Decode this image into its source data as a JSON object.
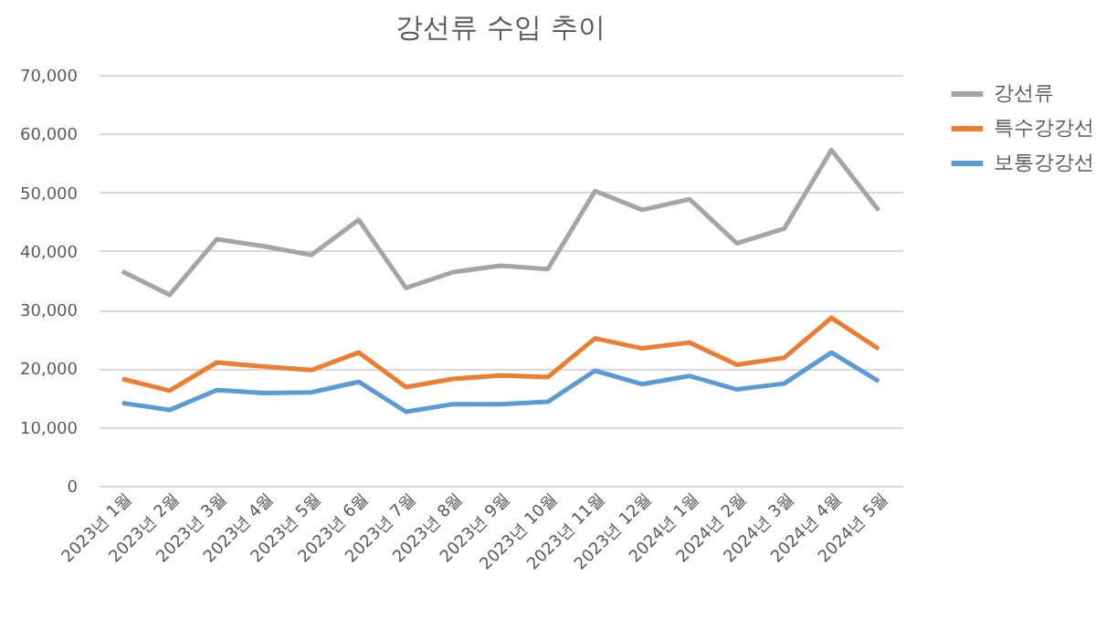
{
  "chart_data": {
    "type": "line",
    "title": "강선류 수입 추이",
    "categories": [
      "2023년 1월",
      "2023년 2월",
      "2023년 3월",
      "2023년 4월",
      "2023년 5월",
      "2023년 6월",
      "2023년 7월",
      "2023년 8월",
      "2023년 9월",
      "2023년 10월",
      "2023년 11월",
      "2023년 12월",
      "2024년 1월",
      "2024년 2월",
      "2024년 3월",
      "2024년 4월",
      "2024년 5월"
    ],
    "series": [
      {
        "name": "강선류",
        "color": "#a5a5a5",
        "values": [
          36500,
          32500,
          42000,
          40800,
          39300,
          45300,
          33700,
          36400,
          37500,
          36900,
          50200,
          47000,
          48800,
          41300,
          43800,
          57200,
          46900
        ]
      },
      {
        "name": "특수강강선",
        "color": "#ed7d31",
        "values": [
          18200,
          16200,
          21000,
          20300,
          19700,
          22700,
          16800,
          18200,
          18800,
          18500,
          25100,
          23400,
          24400,
          20600,
          21800,
          28600,
          23300
        ]
      },
      {
        "name": "보통강강선",
        "color": "#5b9bd5",
        "values": [
          14100,
          12900,
          16300,
          15800,
          15900,
          17700,
          12600,
          13900,
          13900,
          14300,
          19600,
          17300,
          18700,
          16400,
          17400,
          22700,
          17800
        ]
      }
    ],
    "ylim": [
      0,
      70000
    ],
    "yticks": [
      0,
      {
        "value": 10000,
        "label": "10,000"
      },
      {
        "value": 20000,
        "label": "20,000"
      },
      {
        "value": 30000,
        "label": "30,000"
      },
      {
        "value": 40000,
        "label": "40,000"
      },
      {
        "value": 50000,
        "label": "50,000"
      },
      {
        "value": 60000,
        "label": "60,000"
      },
      {
        "value": 70000,
        "label": "70,000"
      }
    ],
    "grid": "y",
    "legend": "right",
    "marker": "none",
    "line_style": "solid"
  }
}
